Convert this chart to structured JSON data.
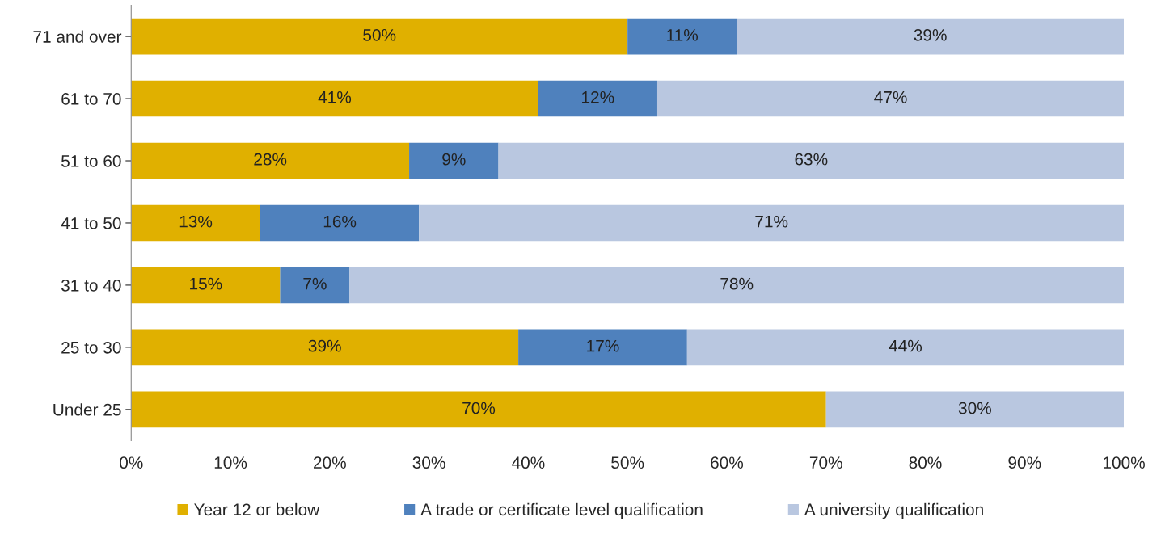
{
  "chart_data": {
    "type": "bar",
    "orientation": "horizontal",
    "stacked": true,
    "categories": [
      "71 and over",
      "61 to 70",
      "51 to 60",
      "41 to 50",
      "31 to 40",
      "25 to 30",
      "Under 25"
    ],
    "series": [
      {
        "name": "Year 12 or below",
        "color": "#e0b000",
        "values": [
          50,
          41,
          28,
          13,
          15,
          39,
          70
        ],
        "value_labels": [
          "50%",
          "41%",
          "28%",
          "13%",
          "15%",
          "39%",
          "70%"
        ]
      },
      {
        "name": "A trade or certificate level qualification",
        "color": "#4f81bd",
        "values": [
          11,
          12,
          9,
          16,
          7,
          17,
          0
        ],
        "value_labels": [
          "11%",
          "12%",
          "9%",
          "16%",
          "7%",
          "17%",
          null
        ]
      },
      {
        "name": "A university qualification",
        "color": "#b9c7e0",
        "values": [
          39,
          47,
          63,
          71,
          78,
          44,
          30
        ],
        "value_labels": [
          "39%",
          "47%",
          "63%",
          "71%",
          "78%",
          "44%",
          "30%"
        ]
      }
    ],
    "xlim": [
      0,
      100
    ],
    "xticks": [
      {
        "value": 0,
        "label": "0%"
      },
      {
        "value": 10,
        "label": "10%"
      },
      {
        "value": 20,
        "label": "20%"
      },
      {
        "value": 30,
        "label": "30%"
      },
      {
        "value": 40,
        "label": "40%"
      },
      {
        "value": 50,
        "label": "50%"
      },
      {
        "value": 60,
        "label": "60%"
      },
      {
        "value": 70,
        "label": "70%"
      },
      {
        "value": 80,
        "label": "80%"
      },
      {
        "value": 90,
        "label": "90%"
      },
      {
        "value": 100,
        "label": "100%"
      }
    ],
    "grid": false,
    "legend": "bottom"
  }
}
